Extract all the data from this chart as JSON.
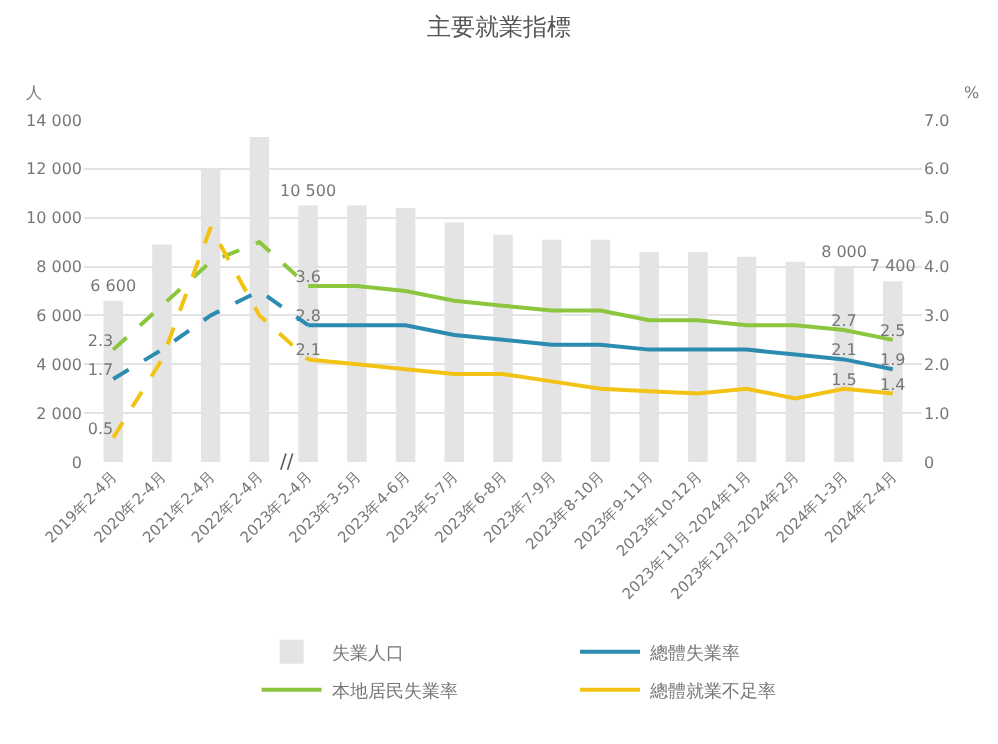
{
  "chart_data": {
    "type": "bar",
    "title": "主要就業指標",
    "ylabel": "人",
    "y2label": "%",
    "categories": [
      "2019年2-4月",
      "2020年2-4月",
      "2021年2-4月",
      "2022年2-4月",
      "2023年2-4月",
      "2023年3-5月",
      "2023年4-6月",
      "2023年5-7月",
      "2023年6-8月",
      "2023年7-9月",
      "2023年8-10月",
      "2023年9-11月",
      "2023年10-12月",
      "2023年11月-2024年1月",
      "2023年12月-2024年2月",
      "2024年1-3月",
      "2024年2-4月"
    ],
    "series": [
      {
        "name": "失業人口",
        "color": "#e4e4e4",
        "values": [
          6600,
          8900,
          12000,
          13300,
          10500,
          10500,
          10400,
          9800,
          9300,
          9100,
          9100,
          8600,
          8600,
          8400,
          8200,
          8000,
          7400
        ],
        "value_labels": [
          "6 600",
          null,
          null,
          null,
          "10 500",
          null,
          null,
          null,
          null,
          null,
          null,
          null,
          null,
          null,
          null,
          "8 000",
          "7 400"
        ]
      },
      {
        "name": "總體失業率",
        "type": "line",
        "axis": "y2",
        "color": "#2b8cb0",
        "line_style": "solid",
        "values": [
          null,
          null,
          null,
          null,
          2.8,
          2.8,
          2.8,
          2.6,
          2.5,
          2.4,
          2.4,
          2.3,
          2.3,
          2.3,
          2.2,
          2.1,
          1.9
        ],
        "value_labels": [
          null,
          null,
          null,
          null,
          "2.8",
          null,
          null,
          null,
          null,
          null,
          null,
          null,
          null,
          null,
          null,
          "2.1",
          "1.9"
        ]
      },
      {
        "name": "本地居民失業率",
        "type": "line",
        "axis": "y2",
        "color": "#8cc63f",
        "line_style": "solid",
        "values": [
          null,
          null,
          null,
          null,
          3.6,
          3.6,
          3.5,
          3.3,
          3.2,
          3.1,
          3.1,
          2.9,
          2.9,
          2.8,
          2.8,
          2.7,
          2.5
        ],
        "value_labels": [
          null,
          null,
          null,
          null,
          "3.6",
          null,
          null,
          null,
          null,
          null,
          null,
          null,
          null,
          null,
          null,
          "2.7",
          "2.5"
        ]
      },
      {
        "name": "總體就業不足率",
        "type": "line",
        "axis": "y2",
        "color": "#f2c314",
        "line_style": "solid",
        "values": [
          null,
          null,
          null,
          null,
          2.1,
          2.0,
          1.9,
          1.8,
          1.8,
          1.65,
          1.5,
          1.45,
          1.4,
          1.5,
          1.3,
          1.5,
          1.4
        ],
        "value_labels": [
          null,
          null,
          null,
          null,
          "2.1",
          null,
          null,
          null,
          null,
          null,
          null,
          null,
          null,
          null,
          null,
          "1.5",
          "1.4"
        ]
      },
      {
        "type": "line",
        "axis": "y2",
        "color": "#2b8cb0",
        "line_style": "dashed",
        "values": [
          1.7,
          2.3,
          3.0,
          3.5,
          2.8,
          null,
          null,
          null,
          null,
          null,
          null,
          null,
          null,
          null,
          null,
          null,
          null
        ],
        "value_labels": [
          "1.7",
          null,
          null,
          null,
          null,
          null,
          null,
          null,
          null,
          null,
          null,
          null,
          null,
          null,
          null,
          null,
          null
        ]
      },
      {
        "type": "line",
        "axis": "y2",
        "color": "#8cc63f",
        "line_style": "dashed",
        "values": [
          2.3,
          3.2,
          4.1,
          4.5,
          3.6,
          null,
          null,
          null,
          null,
          null,
          null,
          null,
          null,
          null,
          null,
          null,
          null
        ],
        "value_labels": [
          "2.3",
          null,
          null,
          null,
          null,
          null,
          null,
          null,
          null,
          null,
          null,
          null,
          null,
          null,
          null,
          null,
          null
        ]
      },
      {
        "type": "line",
        "axis": "y2",
        "color": "#f2c314",
        "line_style": "dashed",
        "values": [
          0.5,
          2.1,
          4.8,
          3.0,
          2.1,
          null,
          null,
          null,
          null,
          null,
          null,
          null,
          null,
          null,
          null,
          null,
          null
        ],
        "value_labels": [
          "0.5",
          null,
          null,
          null,
          null,
          null,
          null,
          null,
          null,
          null,
          null,
          null,
          null,
          null,
          null,
          null,
          null
        ]
      }
    ],
    "ylim": [
      0,
      14000
    ],
    "yticks": [
      0,
      {
        "value": 2000,
        "label": "2 000"
      },
      {
        "value": 4000,
        "label": "4 000"
      },
      {
        "value": 6000,
        "label": "6 000"
      },
      {
        "value": 8000,
        "label": "8 000"
      },
      {
        "value": 10000,
        "label": "10 000"
      },
      {
        "value": 12000,
        "label": "12 000"
      },
      {
        "value": 14000,
        "label": "14 000"
      }
    ],
    "y2lim": [
      0,
      7
    ],
    "y2ticks": [
      0,
      {
        "value": 1,
        "label": "1.0"
      },
      {
        "value": 2,
        "label": "2.0"
      },
      {
        "value": 3,
        "label": "3.0"
      },
      {
        "value": 4,
        "label": "4.0"
      },
      {
        "value": 5,
        "label": "5.0"
      },
      {
        "value": 6,
        "label": "6.0"
      },
      {
        "value": 7,
        "label": "7.0"
      }
    ],
    "grid": "y",
    "legend": "bottom",
    "annotations": [
      "//"
    ]
  }
}
